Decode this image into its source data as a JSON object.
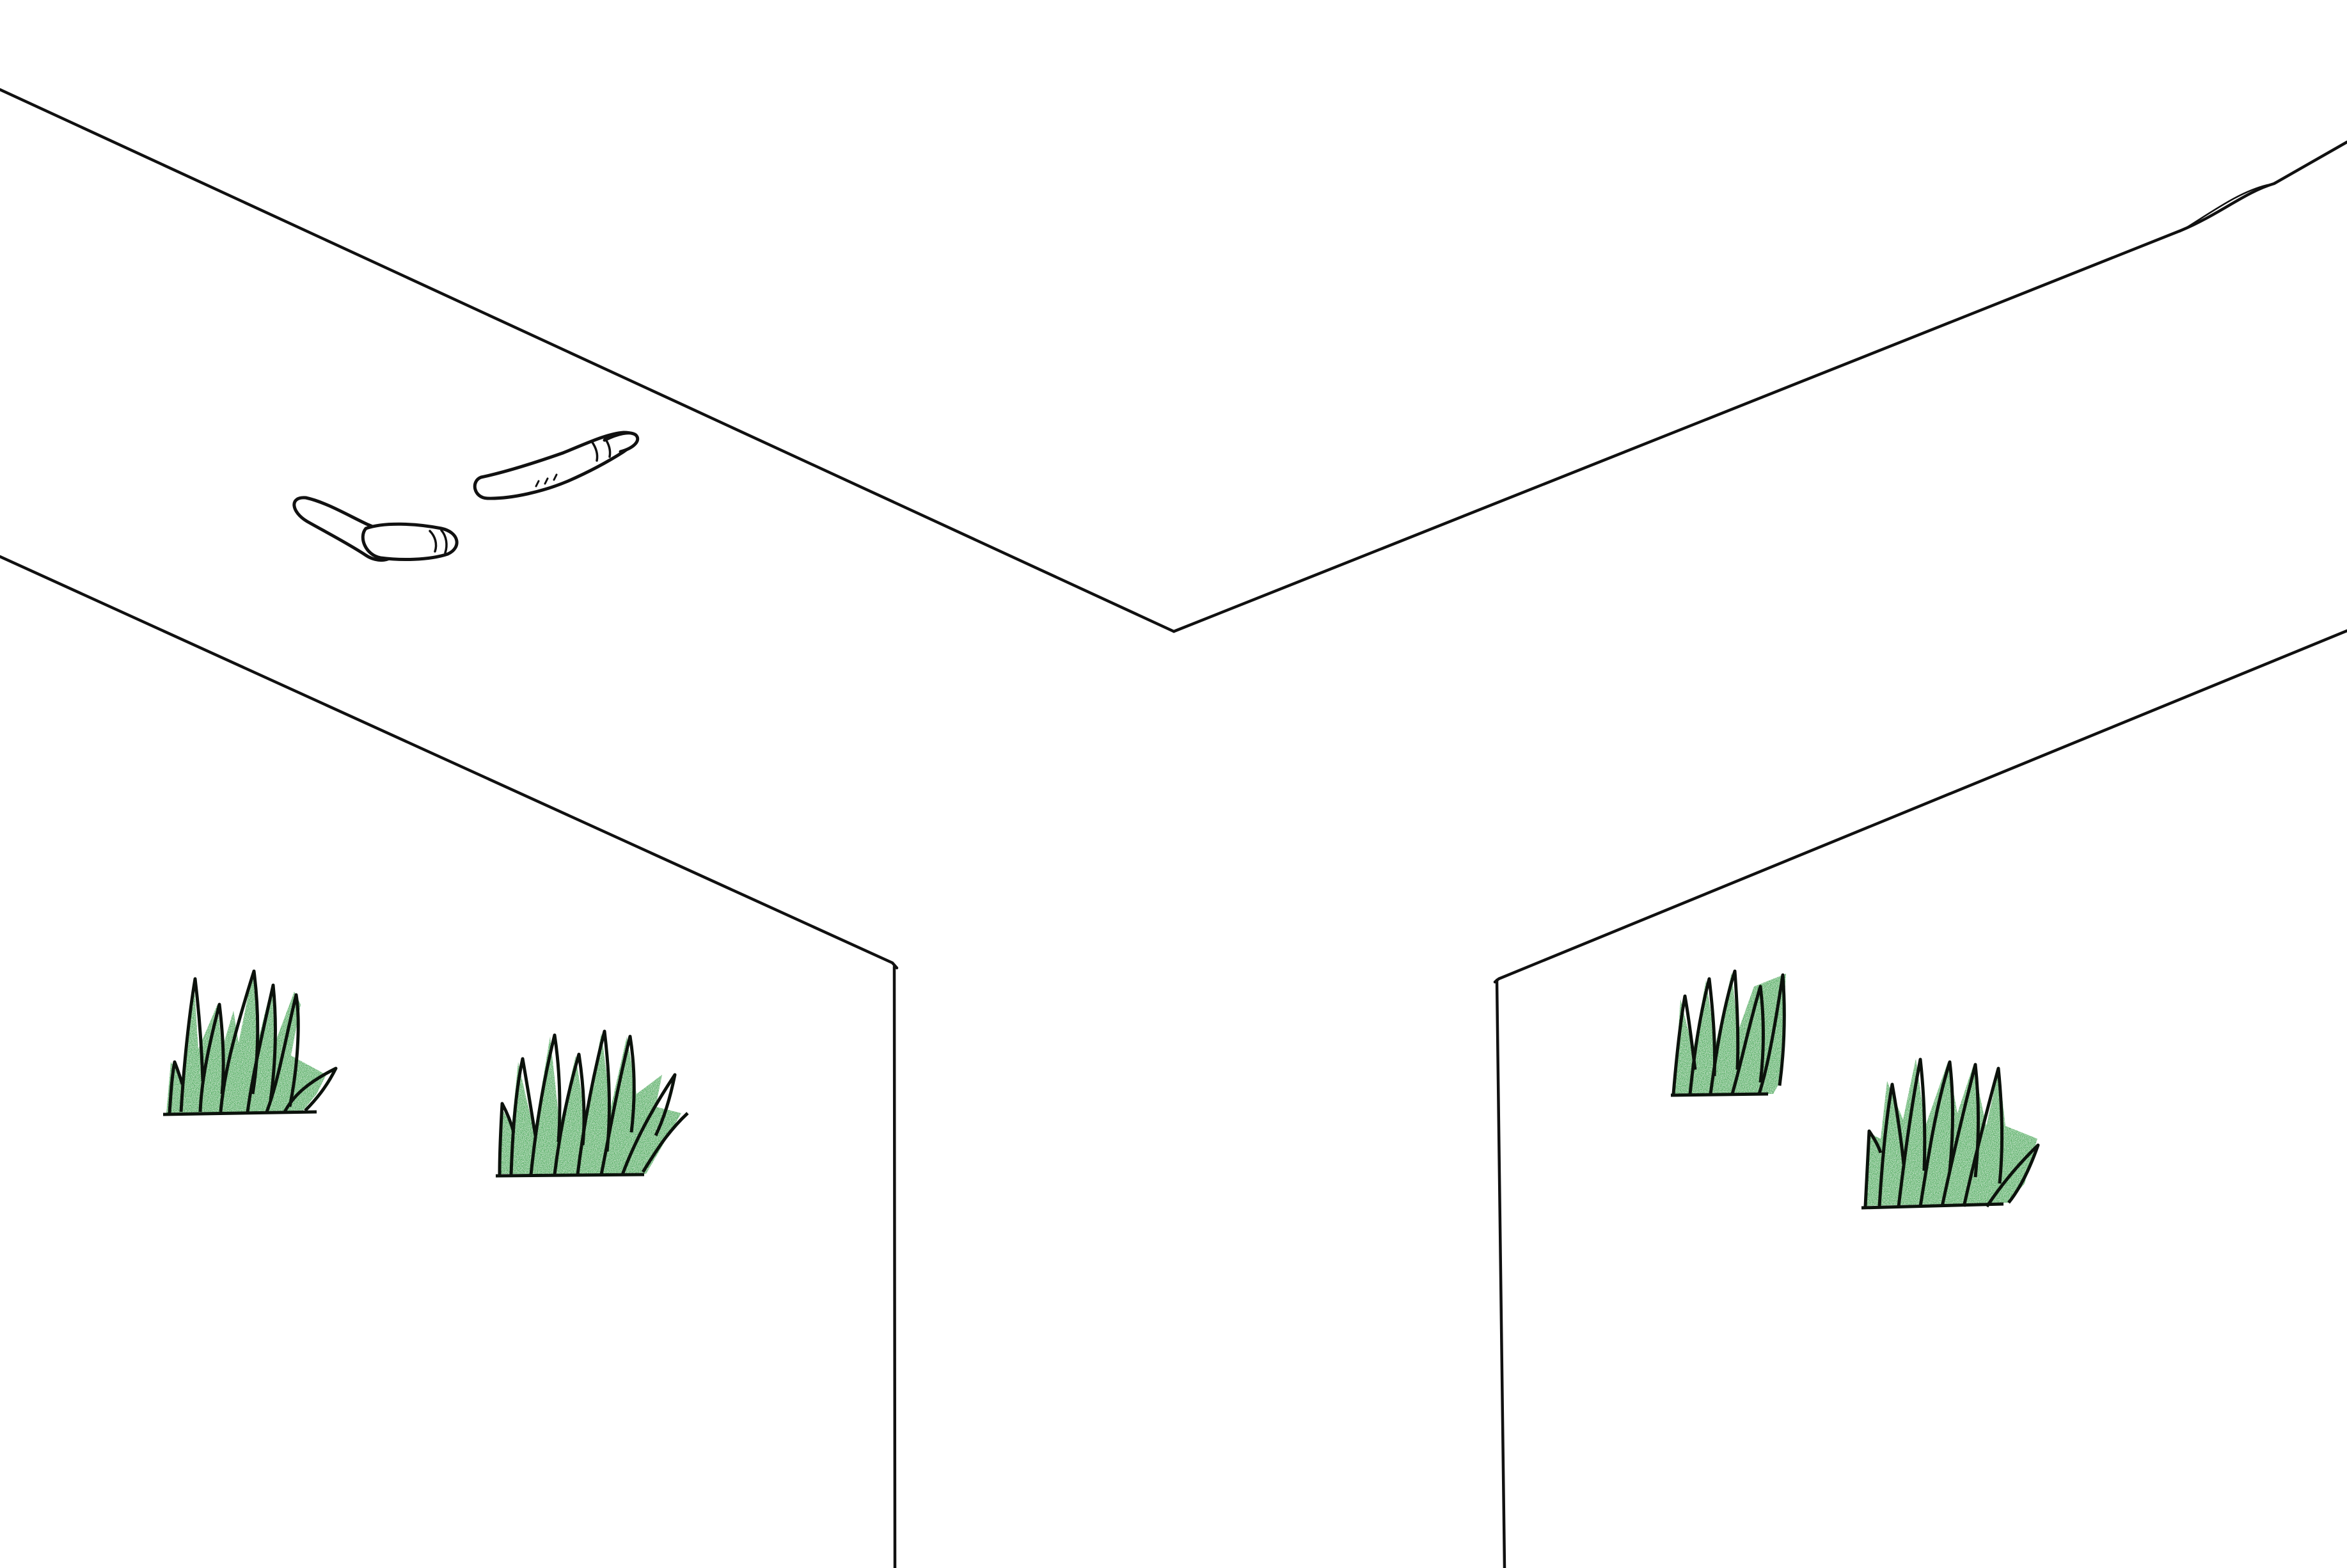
{
  "drawing": {
    "paper_color": "#ffffff",
    "ink_color": "#111111",
    "grass_color": "#2f9a3f",
    "grass_shade_color": "#1f7a30",
    "worm_fill_color": "#ffffff"
  },
  "icons": {
    "grass": "grass-tuft-icon",
    "worm": "worm-icon"
  }
}
